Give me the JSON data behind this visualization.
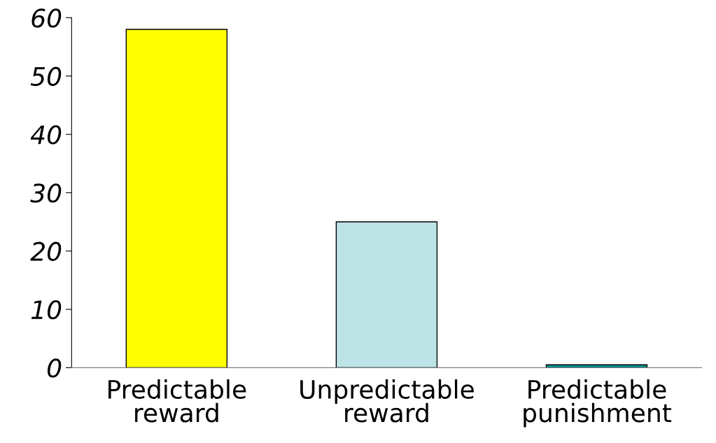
{
  "chart_data": {
    "type": "bar",
    "categories": [
      "Predictable\nreward",
      "Unpredictable\nreward",
      "Predictable\npunishment"
    ],
    "values": [
      58,
      25,
      0.5
    ],
    "colors": [
      "#ffff00",
      "#bde3e6",
      "#009999"
    ],
    "ylim": [
      0,
      60
    ],
    "yticks": [
      0,
      10,
      20,
      30,
      40,
      50,
      60
    ],
    "grid": false
  }
}
